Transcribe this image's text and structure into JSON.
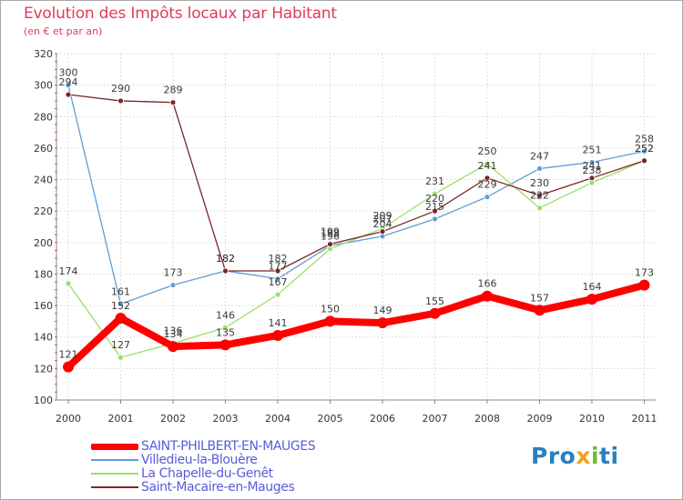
{
  "chart_data": {
    "type": "line",
    "title": "Evolution des Impôts locaux par Habitant",
    "subtitle": "(en € et par an)",
    "xlabel": "",
    "ylabel": "",
    "ylim": [
      100,
      320
    ],
    "y_ticks": [
      100,
      120,
      140,
      160,
      180,
      200,
      220,
      240,
      260,
      280,
      300,
      320
    ],
    "x": [
      "2000",
      "2001",
      "2002",
      "2003",
      "2004",
      "2005",
      "2006",
      "2007",
      "2008",
      "2009",
      "2010",
      "2011"
    ],
    "grid": true,
    "legend_position": "bottom-left",
    "series": [
      {
        "name": "SAINT-PHILBERT-EN-MAUGES",
        "color": "#ff0000",
        "values": [
          121,
          152,
          134,
          135,
          141,
          150,
          149,
          155,
          166,
          157,
          164,
          173
        ],
        "labels": [
          "121",
          "152",
          "134",
          "135",
          "141",
          "150",
          "149",
          "155",
          "166",
          "157",
          "164",
          "173"
        ]
      },
      {
        "name": "Villedieu-la-Blouère",
        "color": "#5e9ed6",
        "values": [
          300,
          161,
          173,
          182,
          177,
          198,
          204,
          215,
          229,
          247,
          251,
          258
        ],
        "labels": [
          "300",
          "161",
          "173",
          "182",
          "177",
          "198",
          "204",
          "215",
          "229",
          "247",
          "251",
          "258"
        ]
      },
      {
        "name": "La Chapelle-du-Genêt",
        "color": "#99e068",
        "values": [
          174,
          127,
          136,
          146,
          167,
          196,
          209,
          231,
          250,
          222,
          238,
          252
        ],
        "labels": [
          "174",
          "127",
          "136",
          "146",
          "167",
          "196",
          "209",
          "231",
          "250",
          "222",
          "238",
          "252"
        ]
      },
      {
        "name": "Saint-Macaire-en-Mauges",
        "color": "#7b2626",
        "values": [
          294,
          290,
          289,
          182,
          182,
          199,
          207,
          220,
          241,
          230,
          241,
          252
        ],
        "labels": [
          "294",
          "290",
          "289",
          "182",
          "182",
          "199",
          "207",
          "220",
          "241",
          "230",
          "241",
          "252"
        ]
      }
    ]
  },
  "logo": {
    "text_parts": [
      "Pro",
      "x",
      "i",
      "ti"
    ]
  }
}
